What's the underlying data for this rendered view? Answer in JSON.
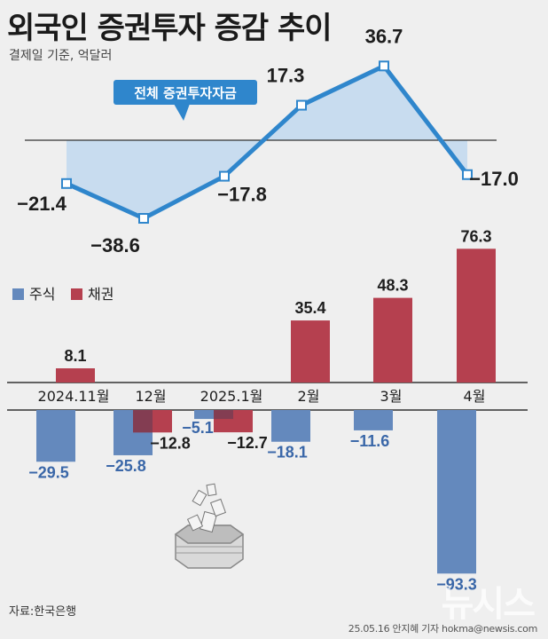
{
  "title": "외국인 증권투자 증감 추이",
  "subtitle": "결제일 기준, 억달러",
  "source": "자료:한국은행",
  "credit": "25.05.16 안지혜 기자 hokma@newsis.com",
  "watermark": "뉴시스",
  "colors": {
    "line": "#2f86cc",
    "area": "#c8dcef",
    "stocks": "#6489bd",
    "bonds": "#b5404f"
  },
  "chart_data": [
    {
      "type": "line",
      "name": "total",
      "label": "전체 증권투자자금",
      "categories": [
        "2024.11월",
        "12월",
        "2025.1월",
        "2월",
        "3월",
        "4월"
      ],
      "values": [
        -21.4,
        -38.6,
        -17.8,
        17.3,
        36.7,
        -17.0
      ],
      "value_labels": [
        "−21.4",
        "−38.6",
        "−17.8",
        "17.3",
        "36.7",
        "−17.0"
      ]
    },
    {
      "type": "bar",
      "categories": [
        "2024.11월",
        "12월",
        "2025.1월",
        "2월",
        "3월",
        "4월"
      ],
      "legend": [
        "주식",
        "채권"
      ],
      "series": [
        {
          "name": "주식",
          "values": [
            -29.5,
            -25.8,
            -5.1,
            -18.1,
            -11.6,
            -93.3
          ],
          "value_labels": [
            "−29.5",
            "−25.8",
            "−5.1",
            "−18.1",
            "−11.6",
            "−93.3"
          ]
        },
        {
          "name": "채권",
          "values": [
            8.1,
            -12.8,
            -12.7,
            35.4,
            48.3,
            76.3
          ],
          "value_labels": [
            "8.1",
            "−12.8",
            "−12.7",
            "35.4",
            "48.3",
            "76.3"
          ]
        }
      ]
    }
  ]
}
